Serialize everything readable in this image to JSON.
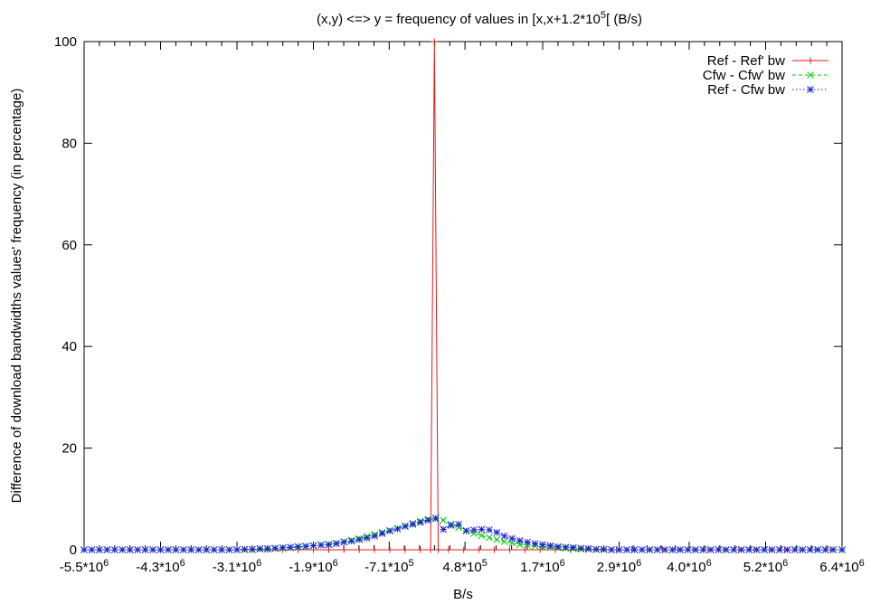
{
  "chart_data": {
    "type": "line",
    "title": {
      "base": "(x,y) <=> y = frequency of values in [x,x+1.2*10",
      "sup": "5",
      "tail": "[ (B/s)"
    },
    "xlabel": "B/s",
    "ylabel": "Difference of download bandwidths values' frequency (in percentage)",
    "xlim": [
      -5500000,
      6400000
    ],
    "ylim": [
      0,
      100
    ],
    "x_ticks": [
      {
        "value": -5500000,
        "base": "-5.5*10",
        "sup": "6"
      },
      {
        "value": -4300000,
        "base": "-4.3*10",
        "sup": "6"
      },
      {
        "value": -3100000,
        "base": "-3.1*10",
        "sup": "6"
      },
      {
        "value": -1900000,
        "base": "-1.9*10",
        "sup": "6"
      },
      {
        "value": -710000,
        "base": "-7.1*10",
        "sup": "5"
      },
      {
        "value": 480000,
        "base": "4.8*10",
        "sup": "5"
      },
      {
        "value": 1700000,
        "base": "1.7*10",
        "sup": "6"
      },
      {
        "value": 2900000,
        "base": "2.9*10",
        "sup": "6"
      },
      {
        "value": 4000000,
        "base": "4.0*10",
        "sup": "6"
      },
      {
        "value": 5200000,
        "base": "5.2*10",
        "sup": "6"
      },
      {
        "value": 6400000,
        "base": "6.4*10",
        "sup": "6"
      }
    ],
    "y_ticks": [
      0,
      20,
      40,
      60,
      80,
      100
    ],
    "legend_position": "top-right",
    "series": [
      {
        "name": "Ref - Ref' bw",
        "color": "#e41a1c",
        "dash": "solid",
        "marker": "plus",
        "points": [
          [
            -5500000,
            0
          ],
          [
            -5260000,
            0
          ],
          [
            -5020000,
            0
          ],
          [
            -4780000,
            0
          ],
          [
            -4540000,
            0
          ],
          [
            -4300000,
            0
          ],
          [
            -4060000,
            0
          ],
          [
            -3820000,
            0
          ],
          [
            -3580000,
            0
          ],
          [
            -3340000,
            0
          ],
          [
            -3100000,
            0
          ],
          [
            -2860000,
            0
          ],
          [
            -2620000,
            0
          ],
          [
            -2380000,
            0
          ],
          [
            -2140000,
            0
          ],
          [
            -1900000,
            0
          ],
          [
            -1660000,
            0
          ],
          [
            -1420000,
            0
          ],
          [
            -1180000,
            0
          ],
          [
            -940000,
            0
          ],
          [
            -700000,
            0
          ],
          [
            -460000,
            0
          ],
          [
            -220000,
            0
          ],
          [
            -60000,
            0
          ],
          [
            0,
            100
          ],
          [
            60000,
            0
          ],
          [
            220000,
            0
          ],
          [
            460000,
            0
          ],
          [
            700000,
            0
          ],
          [
            940000,
            0
          ],
          [
            1180000,
            0
          ],
          [
            1420000,
            0
          ],
          [
            1660000,
            0
          ],
          [
            1900000,
            0
          ],
          [
            2140000,
            0
          ],
          [
            2380000,
            0
          ],
          [
            2620000,
            0
          ],
          [
            2860000,
            0
          ],
          [
            3100000,
            0
          ],
          [
            3340000,
            0
          ],
          [
            3580000,
            0
          ],
          [
            3820000,
            0
          ],
          [
            4060000,
            0
          ],
          [
            4300000,
            0
          ],
          [
            4540000,
            0
          ],
          [
            4780000,
            0
          ],
          [
            5020000,
            0
          ],
          [
            5260000,
            0
          ],
          [
            5500000,
            0
          ],
          [
            5740000,
            0
          ],
          [
            5980000,
            0
          ],
          [
            6220000,
            0
          ],
          [
            6400000,
            0
          ]
        ]
      },
      {
        "name": "Cfw - Cfw' bw",
        "color": "#00cc00",
        "dash": "dashed",
        "marker": "x",
        "points": [
          [
            -5500000,
            0
          ],
          [
            -5380000,
            0
          ],
          [
            -5260000,
            0
          ],
          [
            -5140000,
            0
          ],
          [
            -5020000,
            0
          ],
          [
            -4900000,
            0
          ],
          [
            -4780000,
            0
          ],
          [
            -4660000,
            0
          ],
          [
            -4540000,
            0
          ],
          [
            -4420000,
            0
          ],
          [
            -4300000,
            0
          ],
          [
            -4180000,
            0
          ],
          [
            -4060000,
            0
          ],
          [
            -3940000,
            0
          ],
          [
            -3820000,
            0
          ],
          [
            -3700000,
            0
          ],
          [
            -3580000,
            0
          ],
          [
            -3460000,
            0
          ],
          [
            -3340000,
            0
          ],
          [
            -3220000,
            0
          ],
          [
            -3100000,
            0
          ],
          [
            -2980000,
            0
          ],
          [
            -2860000,
            0
          ],
          [
            -2740000,
            0.1
          ],
          [
            -2620000,
            0.1
          ],
          [
            -2500000,
            0.2
          ],
          [
            -2380000,
            0.3
          ],
          [
            -2260000,
            0.4
          ],
          [
            -2140000,
            0.5
          ],
          [
            -2020000,
            0.6
          ],
          [
            -1900000,
            0.8
          ],
          [
            -1780000,
            1.0
          ],
          [
            -1660000,
            1.1
          ],
          [
            -1540000,
            1.3
          ],
          [
            -1420000,
            1.6
          ],
          [
            -1300000,
            1.9
          ],
          [
            -1180000,
            2.2
          ],
          [
            -1060000,
            2.6
          ],
          [
            -940000,
            3.0
          ],
          [
            -820000,
            3.4
          ],
          [
            -700000,
            3.8
          ],
          [
            -580000,
            4.2
          ],
          [
            -460000,
            4.7
          ],
          [
            -340000,
            5.2
          ],
          [
            -220000,
            5.6
          ],
          [
            -100000,
            6.0
          ],
          [
            20000,
            6.1
          ],
          [
            140000,
            5.8
          ],
          [
            260000,
            5.0
          ],
          [
            380000,
            4.4
          ],
          [
            500000,
            3.8
          ],
          [
            620000,
            3.2
          ],
          [
            740000,
            2.8
          ],
          [
            860000,
            2.4
          ],
          [
            980000,
            2.0
          ],
          [
            1100000,
            1.6
          ],
          [
            1220000,
            1.3
          ],
          [
            1340000,
            1.0
          ],
          [
            1460000,
            0.9
          ],
          [
            1580000,
            0.7
          ],
          [
            1700000,
            0.6
          ],
          [
            1820000,
            0.5
          ],
          [
            1940000,
            0.4
          ],
          [
            2060000,
            0.3
          ],
          [
            2180000,
            0.2
          ],
          [
            2300000,
            0.1
          ],
          [
            2420000,
            0.1
          ],
          [
            2540000,
            0
          ],
          [
            2660000,
            0
          ],
          [
            2780000,
            0
          ],
          [
            2900000,
            0
          ],
          [
            3020000,
            0
          ],
          [
            3140000,
            0
          ],
          [
            3260000,
            0
          ],
          [
            3380000,
            0
          ],
          [
            3500000,
            0
          ],
          [
            3620000,
            0
          ],
          [
            3740000,
            0
          ],
          [
            3860000,
            0
          ],
          [
            3980000,
            0
          ],
          [
            4100000,
            0
          ],
          [
            4220000,
            0
          ],
          [
            4340000,
            0
          ],
          [
            4460000,
            0
          ],
          [
            4580000,
            0
          ],
          [
            4700000,
            0
          ],
          [
            4820000,
            0
          ],
          [
            4940000,
            0
          ],
          [
            5060000,
            0
          ],
          [
            5180000,
            0
          ],
          [
            5300000,
            0
          ],
          [
            5420000,
            0
          ],
          [
            5540000,
            0
          ],
          [
            5660000,
            0
          ],
          [
            5780000,
            0
          ],
          [
            5900000,
            0
          ],
          [
            6020000,
            0
          ],
          [
            6140000,
            0
          ],
          [
            6260000,
            0
          ],
          [
            6400000,
            0
          ]
        ]
      },
      {
        "name": "Ref - Cfw bw",
        "color": "#1f1fdd",
        "dash": "dotted",
        "marker": "star",
        "points": [
          [
            -5500000,
            0
          ],
          [
            -5380000,
            0
          ],
          [
            -5260000,
            0
          ],
          [
            -5140000,
            0
          ],
          [
            -5020000,
            0
          ],
          [
            -4900000,
            0
          ],
          [
            -4780000,
            0
          ],
          [
            -4660000,
            0
          ],
          [
            -4540000,
            0
          ],
          [
            -4420000,
            0
          ],
          [
            -4300000,
            0
          ],
          [
            -4180000,
            0
          ],
          [
            -4060000,
            0
          ],
          [
            -3940000,
            0
          ],
          [
            -3820000,
            0
          ],
          [
            -3700000,
            0
          ],
          [
            -3580000,
            0
          ],
          [
            -3460000,
            0
          ],
          [
            -3340000,
            0
          ],
          [
            -3220000,
            0
          ],
          [
            -3100000,
            0
          ],
          [
            -2980000,
            0.1
          ],
          [
            -2860000,
            0.1
          ],
          [
            -2740000,
            0.2
          ],
          [
            -2620000,
            0.2
          ],
          [
            -2500000,
            0.3
          ],
          [
            -2380000,
            0.4
          ],
          [
            -2260000,
            0.5
          ],
          [
            -2140000,
            0.6
          ],
          [
            -2020000,
            0.7
          ],
          [
            -1900000,
            0.8
          ],
          [
            -1780000,
            0.9
          ],
          [
            -1660000,
            1.0
          ],
          [
            -1540000,
            1.2
          ],
          [
            -1420000,
            1.5
          ],
          [
            -1300000,
            1.7
          ],
          [
            -1180000,
            2.0
          ],
          [
            -1060000,
            2.3
          ],
          [
            -940000,
            2.7
          ],
          [
            -820000,
            3.2
          ],
          [
            -700000,
            3.7
          ],
          [
            -580000,
            4.1
          ],
          [
            -460000,
            4.6
          ],
          [
            -340000,
            5.0
          ],
          [
            -220000,
            5.4
          ],
          [
            -100000,
            5.8
          ],
          [
            20000,
            6.2
          ],
          [
            140000,
            4.0
          ],
          [
            260000,
            4.8
          ],
          [
            380000,
            5.0
          ],
          [
            500000,
            3.7
          ],
          [
            620000,
            3.9
          ],
          [
            740000,
            4.0
          ],
          [
            860000,
            3.9
          ],
          [
            980000,
            3.4
          ],
          [
            1100000,
            2.7
          ],
          [
            1220000,
            2.2
          ],
          [
            1340000,
            1.8
          ],
          [
            1460000,
            1.5
          ],
          [
            1580000,
            1.2
          ],
          [
            1700000,
            1.0
          ],
          [
            1820000,
            0.8
          ],
          [
            1940000,
            0.6
          ],
          [
            2060000,
            0.5
          ],
          [
            2180000,
            0.4
          ],
          [
            2300000,
            0.3
          ],
          [
            2420000,
            0.2
          ],
          [
            2540000,
            0.1
          ],
          [
            2660000,
            0.1
          ],
          [
            2780000,
            0
          ],
          [
            2900000,
            0
          ],
          [
            3020000,
            0
          ],
          [
            3140000,
            0
          ],
          [
            3260000,
            0
          ],
          [
            3380000,
            0
          ],
          [
            3500000,
            0
          ],
          [
            3620000,
            0
          ],
          [
            3740000,
            0
          ],
          [
            3860000,
            0
          ],
          [
            3980000,
            0
          ],
          [
            4100000,
            0
          ],
          [
            4220000,
            0
          ],
          [
            4340000,
            0
          ],
          [
            4460000,
            0
          ],
          [
            4580000,
            0
          ],
          [
            4700000,
            0
          ],
          [
            4820000,
            0
          ],
          [
            4940000,
            0
          ],
          [
            5060000,
            0
          ],
          [
            5180000,
            0
          ],
          [
            5300000,
            0
          ],
          [
            5420000,
            0
          ],
          [
            5540000,
            0
          ],
          [
            5660000,
            0
          ],
          [
            5780000,
            0
          ],
          [
            5900000,
            0
          ],
          [
            6020000,
            0
          ],
          [
            6140000,
            0
          ],
          [
            6260000,
            0
          ],
          [
            6400000,
            0
          ]
        ]
      }
    ]
  }
}
